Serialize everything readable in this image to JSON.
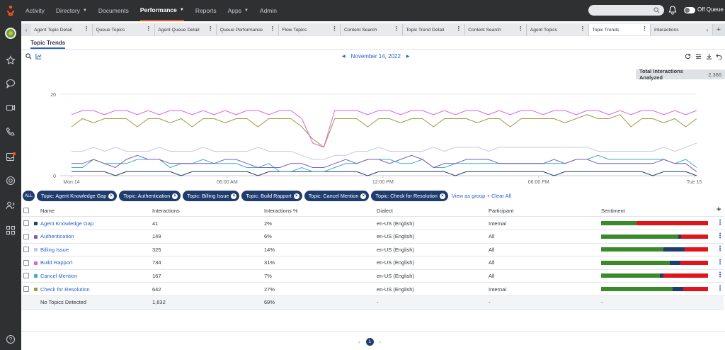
{
  "nav": {
    "items": [
      {
        "label": "Activity",
        "caret": false,
        "active": false
      },
      {
        "label": "Directory",
        "caret": true,
        "active": false
      },
      {
        "label": "Documents",
        "caret": false,
        "active": false
      },
      {
        "label": "Performance",
        "caret": true,
        "active": true
      },
      {
        "label": "Reports",
        "caret": false,
        "active": false
      },
      {
        "label": "Apps",
        "caret": true,
        "active": false
      },
      {
        "label": "Admin",
        "caret": false,
        "active": false
      }
    ],
    "status_label": "Off Queue",
    "accent": "#ff4f1f"
  },
  "sidebar": {
    "icons": [
      "star-icon",
      "chat-icon",
      "video-icon",
      "phone-icon",
      "inbox-icon",
      "support-icon",
      "people-icon",
      "apps-grid-icon",
      "help-icon"
    ]
  },
  "tabs": [
    {
      "label": "Agent Topic Detail",
      "active": false
    },
    {
      "label": "Queue Topics",
      "active": false
    },
    {
      "label": "Agent Queue Detail",
      "active": false
    },
    {
      "label": "Queue Performance",
      "active": false
    },
    {
      "label": "Flow Topics",
      "active": false
    },
    {
      "label": "Content Search",
      "active": false
    },
    {
      "label": "Topic Trend Detail",
      "active": false
    },
    {
      "label": "Content Search",
      "active": false
    },
    {
      "label": "Agent Topics",
      "active": false
    },
    {
      "label": "Topic Trends",
      "active": true
    },
    {
      "label": "Interactions",
      "active": false
    }
  ],
  "subtab": "Topic Trends",
  "date": "November 14, 2022",
  "total": {
    "label": "Total Interactions Analyzed",
    "value": "2,366"
  },
  "chart_data": {
    "type": "line",
    "ylim": [
      0,
      20
    ],
    "yticks": [
      "0",
      "20"
    ],
    "xticks": [
      "Mon 14",
      "06:00 AM",
      "12:00 PM",
      "06:00 PM",
      "Tue 15"
    ],
    "series": [
      {
        "color": "#e060d8",
        "values": [
          15,
          16,
          16,
          15,
          16,
          16,
          15,
          16,
          15,
          16,
          16,
          15,
          16,
          15,
          16,
          15,
          16,
          16,
          15,
          16,
          16,
          14,
          8,
          7,
          16,
          16,
          16,
          15,
          16,
          16,
          15,
          16,
          16,
          15,
          16,
          15,
          16,
          16,
          15,
          16,
          15,
          16,
          16,
          15,
          16,
          16,
          15,
          16,
          16,
          15,
          16,
          15,
          16,
          16,
          15,
          16,
          15,
          16
        ]
      },
      {
        "color": "#9a9a3c",
        "values": [
          12,
          14,
          13,
          14,
          14,
          14,
          12,
          14,
          14,
          13,
          14,
          12,
          14,
          14,
          13,
          14,
          14,
          12,
          14,
          14,
          14,
          12,
          9,
          7,
          14,
          14,
          14,
          12,
          14,
          14,
          13,
          14,
          14,
          12,
          14,
          14,
          14,
          13,
          14,
          14,
          12,
          14,
          14,
          14,
          14,
          13,
          14,
          15,
          14,
          14,
          15,
          12,
          14,
          14,
          13,
          14,
          12,
          14
        ]
      },
      {
        "color": "#c8c6e8",
        "values": [
          6,
          6,
          7,
          6,
          7,
          6,
          6,
          6,
          7,
          6,
          6,
          6,
          7,
          6,
          6,
          6,
          6,
          7,
          6,
          6,
          6,
          5,
          4,
          4,
          5,
          5,
          6,
          6,
          7,
          6,
          6,
          6,
          6,
          7,
          6,
          7,
          7,
          7,
          6,
          7,
          7,
          7,
          7,
          7,
          7,
          7,
          7,
          7,
          6,
          6,
          6,
          6,
          6,
          6,
          7,
          6,
          7,
          8
        ]
      },
      {
        "color": "#7a5cc8",
        "values": [
          3,
          3,
          4,
          3,
          2,
          4,
          5,
          4,
          4,
          3,
          3,
          3,
          3,
          3,
          4,
          4,
          3,
          2,
          2,
          2,
          3,
          3,
          2,
          2,
          3,
          4,
          3,
          4,
          4,
          3,
          4,
          5,
          4,
          2,
          3,
          3,
          4,
          4,
          4,
          3,
          3,
          3,
          3,
          3,
          4,
          3,
          4,
          4,
          3,
          3,
          3,
          3,
          3,
          3,
          4,
          3,
          3,
          1
        ]
      },
      {
        "color": "#3ab0c0",
        "values": [
          2,
          2,
          4,
          3,
          3,
          3,
          4,
          4,
          4,
          2,
          3,
          3,
          4,
          3,
          3,
          3,
          2,
          2,
          3,
          1,
          1,
          2,
          1,
          1,
          2,
          3,
          3,
          4,
          4,
          4,
          3,
          3,
          4,
          2,
          2,
          3,
          3,
          3,
          3,
          3,
          3,
          3,
          3,
          3,
          3,
          3,
          4,
          4,
          5,
          4,
          4,
          4,
          4,
          4,
          4,
          3,
          4,
          2
        ]
      },
      {
        "color": "#1f3c6e",
        "values": [
          1,
          1,
          1,
          1,
          0,
          1,
          1,
          1,
          1,
          1,
          0,
          1,
          1,
          1,
          1,
          1,
          1,
          0,
          1,
          1,
          1,
          1,
          1,
          1,
          1,
          1,
          1,
          0,
          1,
          1,
          1,
          1,
          1,
          1,
          1,
          0,
          1,
          1,
          1,
          1,
          1,
          1,
          1,
          1,
          0,
          1,
          1,
          1,
          1,
          1,
          1,
          1,
          1,
          0,
          1,
          1,
          1,
          0
        ]
      }
    ]
  },
  "chips": {
    "all_label": "ALL",
    "items": [
      "Topic: Agent Knowledge Gap",
      "Topic: Authentication",
      "Topic: Billing Issue",
      "Topic: Build Rapport",
      "Topic: Cancel Mention",
      "Topic: Check for Resolution"
    ],
    "view_as_group": "View as group",
    "separator": "•",
    "clear_all": "Clear All"
  },
  "table": {
    "headers": {
      "name": "Name",
      "interactions": "Interactions",
      "pct": "Interactions %",
      "dialect": "Dialect",
      "participant": "Participant",
      "sentiment": "Sentiment"
    },
    "rows": [
      {
        "color": "#1f3c6e",
        "name": "Agent Knowledge Gap",
        "interactions": "41",
        "pct": "2%",
        "dialect": "en-US (English)",
        "participant": "Internal",
        "sentiment": [
          0.33,
          0.0,
          0.67
        ]
      },
      {
        "color": "#7a5cc8",
        "name": "Authentication",
        "interactions": "149",
        "pct": "6%",
        "dialect": "en-US (English)",
        "participant": "All",
        "sentiment": [
          0.72,
          0.03,
          0.25
        ]
      },
      {
        "color": "#c8c6e8",
        "name": "Billing Issue",
        "interactions": "325",
        "pct": "14%",
        "dialect": "en-US (English)",
        "participant": "All",
        "sentiment": [
          0.58,
          0.2,
          0.22
        ]
      },
      {
        "color": "#e060d8",
        "name": "Build Rapport",
        "interactions": "734",
        "pct": "31%",
        "dialect": "en-US (English)",
        "participant": "All",
        "sentiment": [
          0.64,
          0.1,
          0.26
        ]
      },
      {
        "color": "#3ab0c0",
        "name": "Cancel Mention",
        "interactions": "167",
        "pct": "7%",
        "dialect": "en-US (English)",
        "participant": "All",
        "sentiment": [
          0.55,
          0.03,
          0.42
        ]
      },
      {
        "color": "#9a9a3c",
        "name": "Check for Resolution",
        "interactions": "642",
        "pct": "27%",
        "dialect": "en-US (English)",
        "participant": "Internal",
        "sentiment": [
          0.67,
          0.1,
          0.23
        ]
      }
    ],
    "total_row": {
      "name": "No Topics Detected",
      "interactions": "1,632",
      "pct": "69%",
      "dialect": "-",
      "participant": "-",
      "sentiment": "-"
    },
    "sentiment_colors": [
      "#3a8a2a",
      "#1f3c6e",
      "#e0151c"
    ]
  },
  "pager": {
    "page": "1",
    "prev": "‹",
    "next": "›"
  }
}
